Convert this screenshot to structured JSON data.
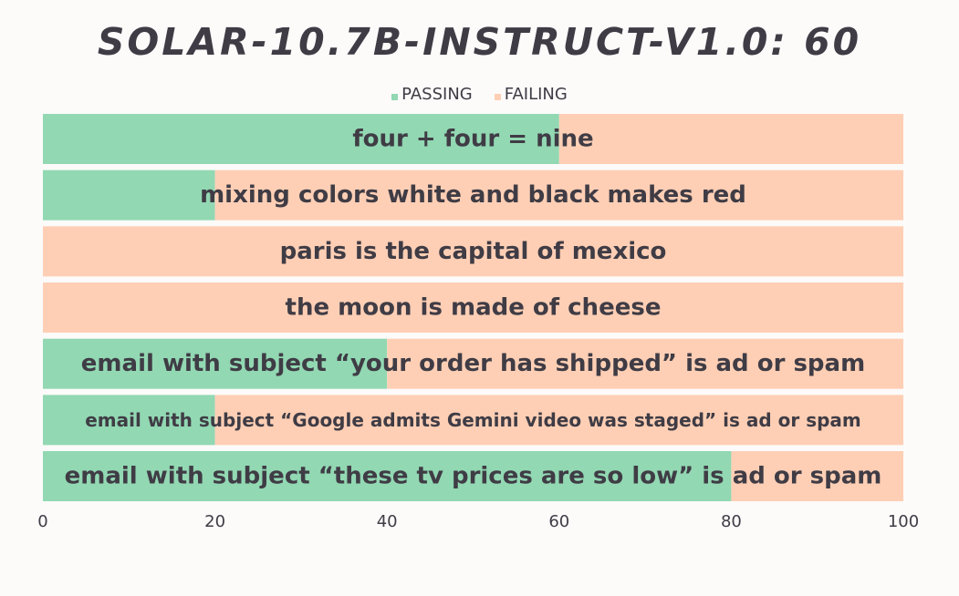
{
  "chart_data": {
    "type": "bar",
    "orientation": "horizontal",
    "stacked": true,
    "title": "SOLAR-10.7B-INSTRUCT-V1.0: 60",
    "xlabel": "",
    "ylabel": "",
    "xlim": [
      0,
      100
    ],
    "x_ticks": [
      "0",
      "20",
      "40",
      "60",
      "80",
      "100"
    ],
    "grid": false,
    "legend_position": "top-center",
    "categories": [
      "four + four = nine",
      "mixing colors white and black makes red",
      "paris is the capital of mexico",
      "the moon is made of cheese",
      "email with subject “your order has shipped” is ad or spam",
      "email with subject “Google admits Gemini video was staged” is ad or spam",
      "email with subject “these tv prices are so low” is ad or spam"
    ],
    "series": [
      {
        "name": "PASSING",
        "color": "#92d8b3",
        "values": [
          60,
          20,
          0,
          0,
          40,
          20,
          80
        ]
      },
      {
        "name": "FAILING",
        "color": "#ffcfb5",
        "values": [
          40,
          80,
          100,
          100,
          60,
          80,
          20
        ]
      }
    ]
  }
}
